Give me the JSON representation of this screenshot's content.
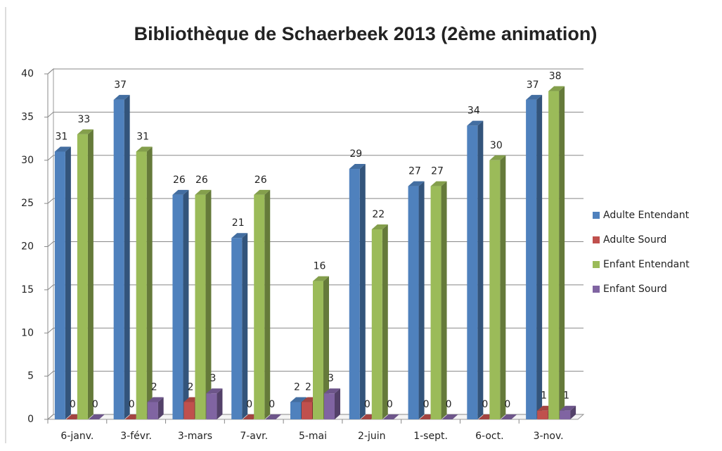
{
  "chart_data": {
    "type": "bar3d",
    "title": "Bibliothèque de Schaerbeek 2013 (2ème animation)",
    "categories": [
      "6-janv.",
      "3-févr.",
      "3-mars",
      "7-avr.",
      "5-mai",
      "2-juin",
      "1-sept.",
      "6-oct.",
      "3-nov."
    ],
    "series": [
      {
        "name": "Adulte Entendant",
        "color": "#4f81bd",
        "values": [
          31,
          37,
          26,
          21,
          2,
          29,
          27,
          34,
          37
        ]
      },
      {
        "name": "Adulte Sourd",
        "color": "#c0504d",
        "values": [
          0,
          0,
          2,
          0,
          2,
          0,
          0,
          0,
          1
        ]
      },
      {
        "name": "Enfant Entendant",
        "color": "#9bbb59",
        "values": [
          33,
          31,
          26,
          26,
          16,
          22,
          27,
          30,
          38
        ]
      },
      {
        "name": "Enfant Sourd",
        "color": "#8064a2",
        "values": [
          0,
          2,
          3,
          0,
          3,
          0,
          0,
          0,
          1
        ]
      }
    ],
    "ylim": [
      0,
      40
    ],
    "yticks": [
      0,
      5,
      10,
      15,
      20,
      25,
      30,
      35,
      40
    ],
    "grid": true,
    "legend": "right"
  }
}
